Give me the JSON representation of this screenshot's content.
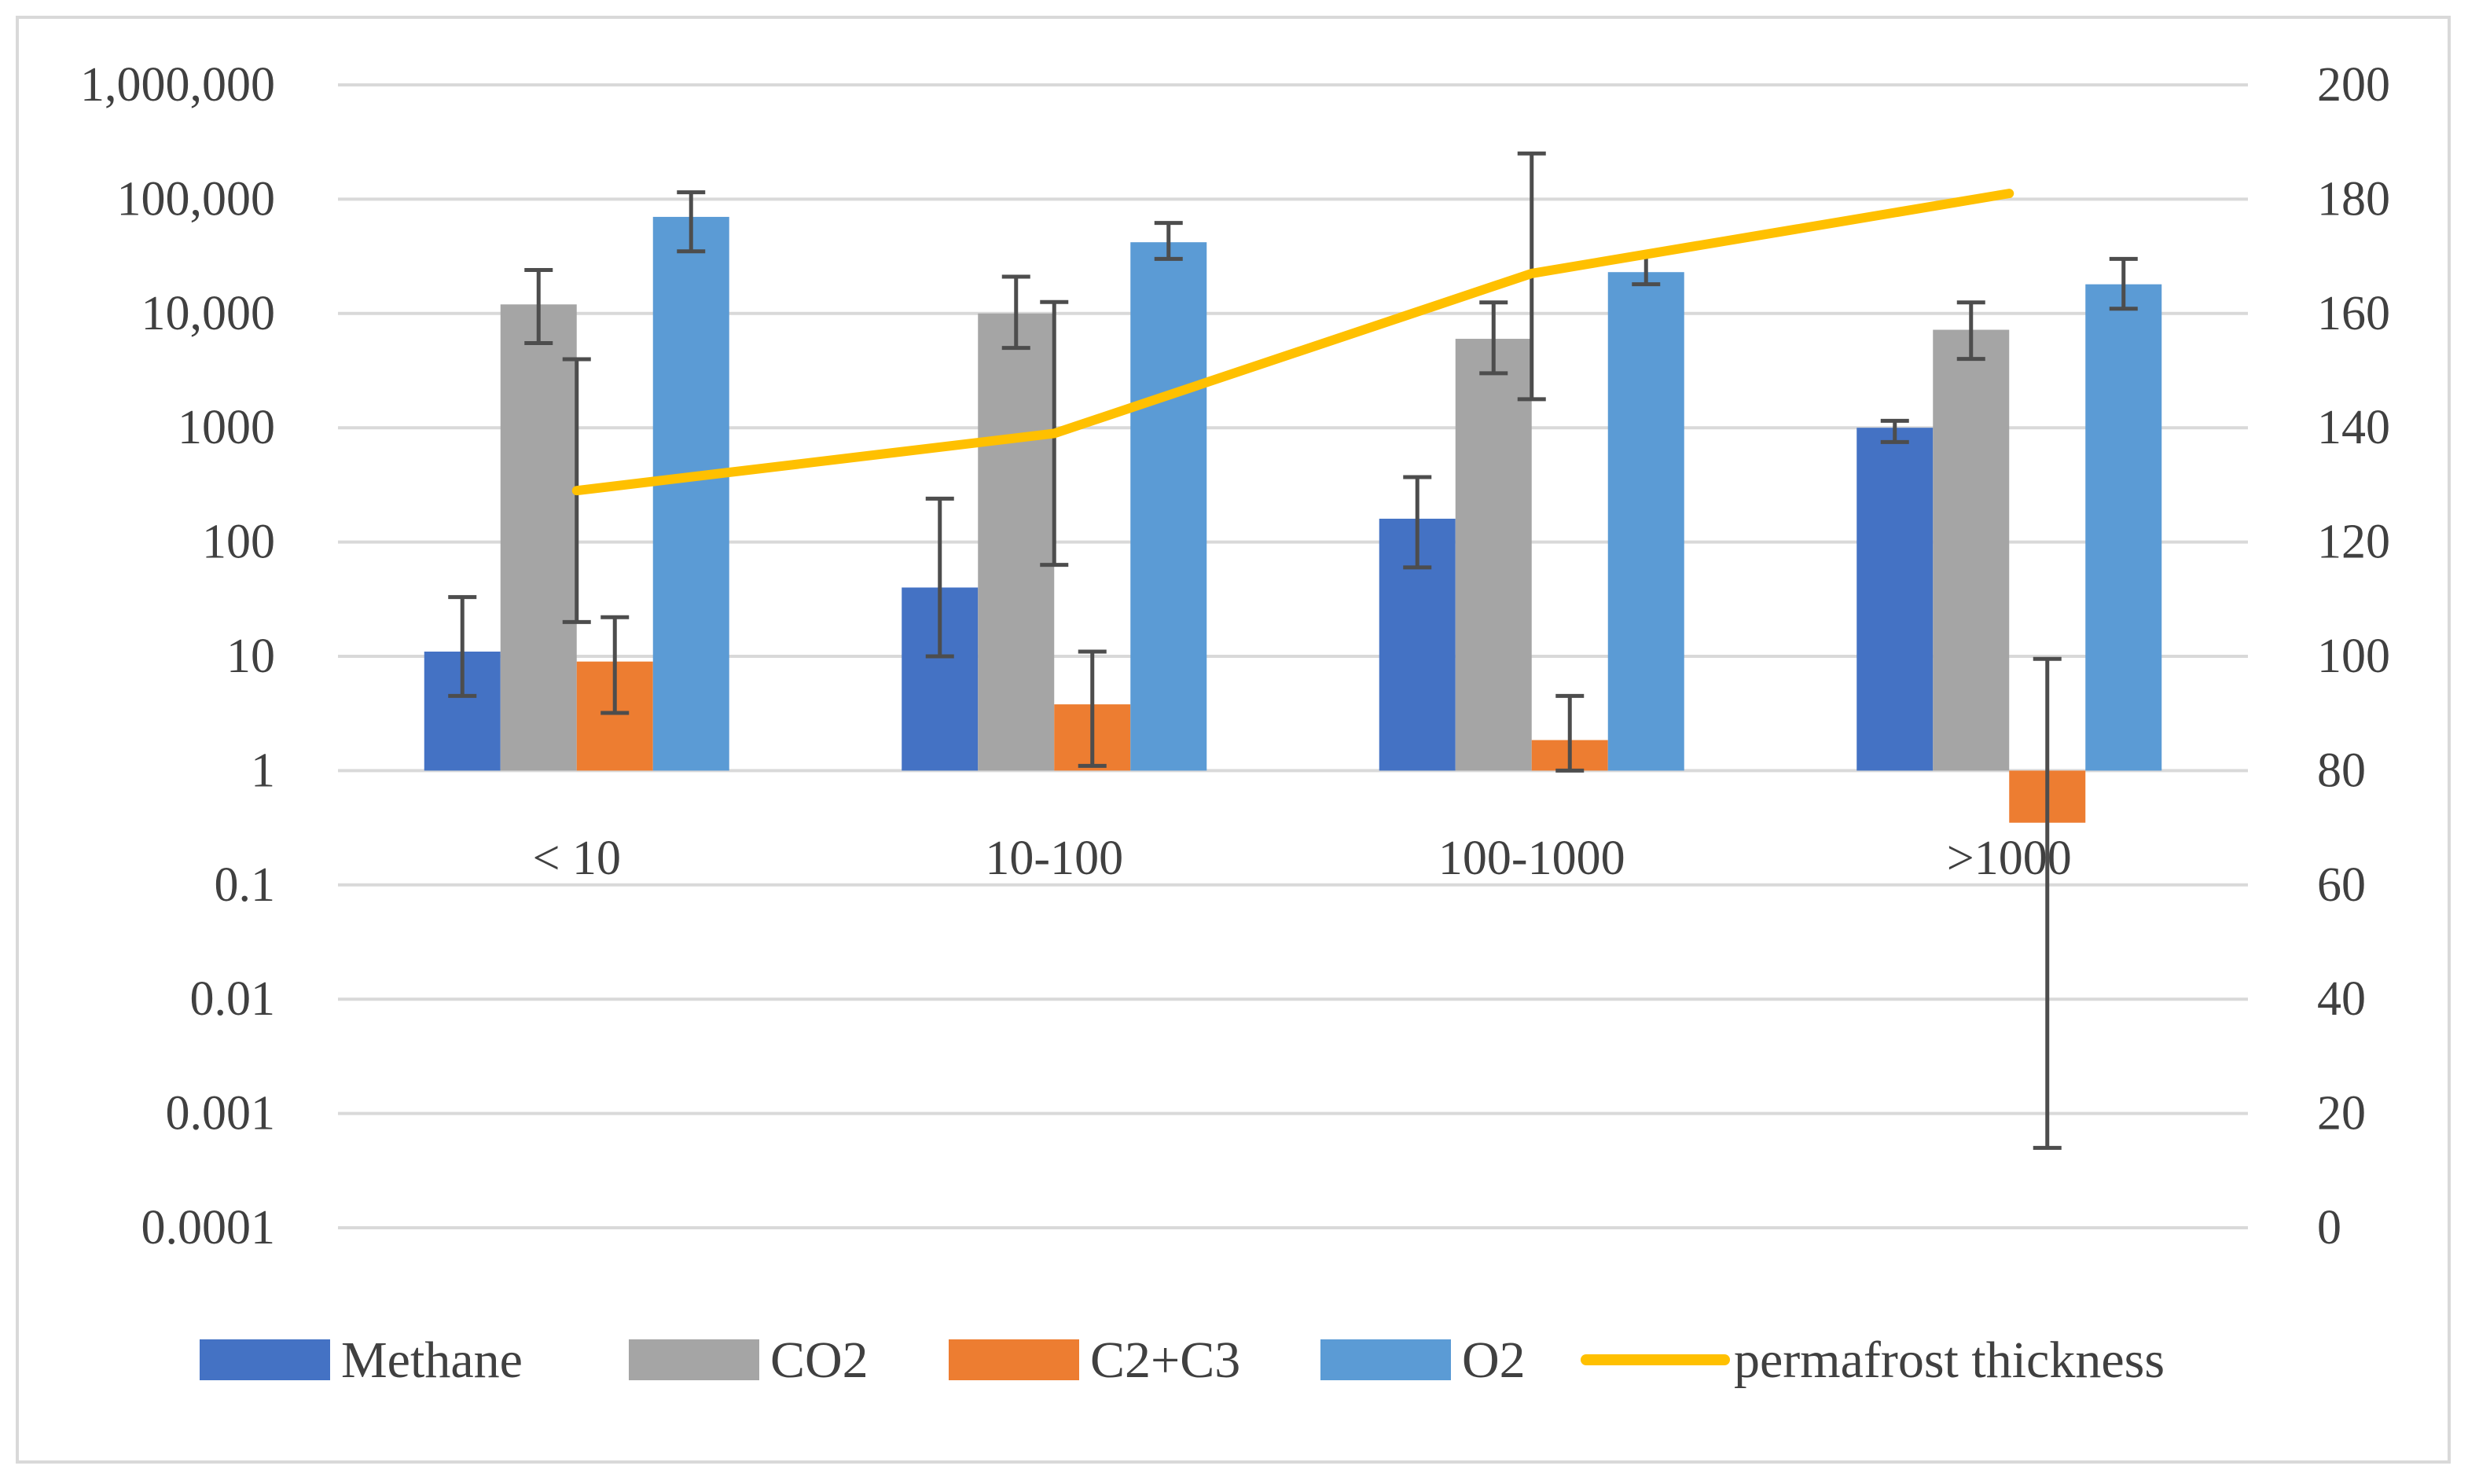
{
  "chart_data": {
    "type": "bar",
    "title": "",
    "categories": [
      "< 10",
      "10-100",
      "100-1000",
      ">1000"
    ],
    "y_left": {
      "scale": "log",
      "range": [
        0.0001,
        1000000
      ],
      "tick_labels": [
        "1,000,000",
        "100,000",
        "10,000",
        "1000",
        "100",
        "10",
        "1",
        "0.1",
        "0.01",
        "0.001",
        "0.0001"
      ],
      "baseline": 1
    },
    "y_right": {
      "scale": "linear",
      "range": [
        0,
        200
      ],
      "tick_labels": [
        "200",
        "180",
        "160",
        "140",
        "120",
        "100",
        "80",
        "60",
        "40",
        "20",
        "0"
      ]
    },
    "grid": true,
    "series": [
      {
        "name": "Methane",
        "type": "bar",
        "axis": "left",
        "color": "#4472c4",
        "values": [
          11,
          40,
          160,
          1000
        ],
        "err_low": [
          4.5,
          10,
          60,
          750
        ],
        "err_high": [
          33,
          240,
          370,
          1150
        ]
      },
      {
        "name": "CO2",
        "type": "bar",
        "axis": "left",
        "color": "#a5a5a5",
        "values": [
          12000,
          10000,
          6000,
          7200
        ],
        "err_low": [
          5500,
          5000,
          3000,
          4000
        ],
        "err_high": [
          24000,
          21000,
          12500,
          12500
        ]
      },
      {
        "name": "C2+C3",
        "type": "bar",
        "axis": "left",
        "color": "#ed7d31",
        "values": [
          9,
          3.8,
          1.85,
          0.35
        ],
        "err_low": [
          3.2,
          1.1,
          1,
          0.0005
        ],
        "err_high": [
          22,
          11,
          4.5,
          9.5
        ]
      },
      {
        "name": "O2",
        "type": "bar",
        "axis": "left",
        "color": "#5b9bd5",
        "values": [
          70000,
          42000,
          23000,
          18000
        ],
        "err_low": [
          35000,
          30000,
          18000,
          11000
        ],
        "err_high": [
          115000,
          62000,
          33000,
          30000
        ]
      },
      {
        "name": "permafrost thickness",
        "type": "line",
        "axis": "right",
        "color": "#ffc000",
        "values": [
          129,
          139,
          167,
          181
        ],
        "err_low": [
          106,
          116,
          145,
          null
        ],
        "err_high": [
          152,
          162,
          188,
          null
        ]
      }
    ],
    "legend": {
      "position": "bottom",
      "entries": [
        "Methane",
        "CO2",
        "C2+C3",
        "O2",
        "permafrost thickness"
      ]
    }
  }
}
